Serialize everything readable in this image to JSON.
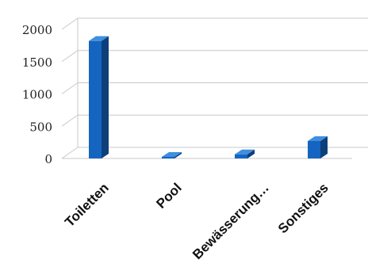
{
  "chart_data": {
    "type": "bar",
    "categories": [
      "Toiletten",
      "Pool",
      "Bewässerung…",
      "Sonstiges"
    ],
    "values": [
      1820,
      25,
      65,
      270
    ],
    "ylim": [
      0,
      2000
    ],
    "yticks": [
      0,
      500,
      1000,
      1500,
      2000
    ],
    "ytick_labels": [
      "0",
      "500",
      "1000",
      "1500",
      "2000"
    ],
    "grid": true,
    "three_d": true,
    "legend": "none",
    "colors": {
      "bar_front": "#1565c0",
      "bar_side": "#0d3f7a",
      "bar_top": "#3f8fe0",
      "grid": "#c8c8c8"
    }
  }
}
